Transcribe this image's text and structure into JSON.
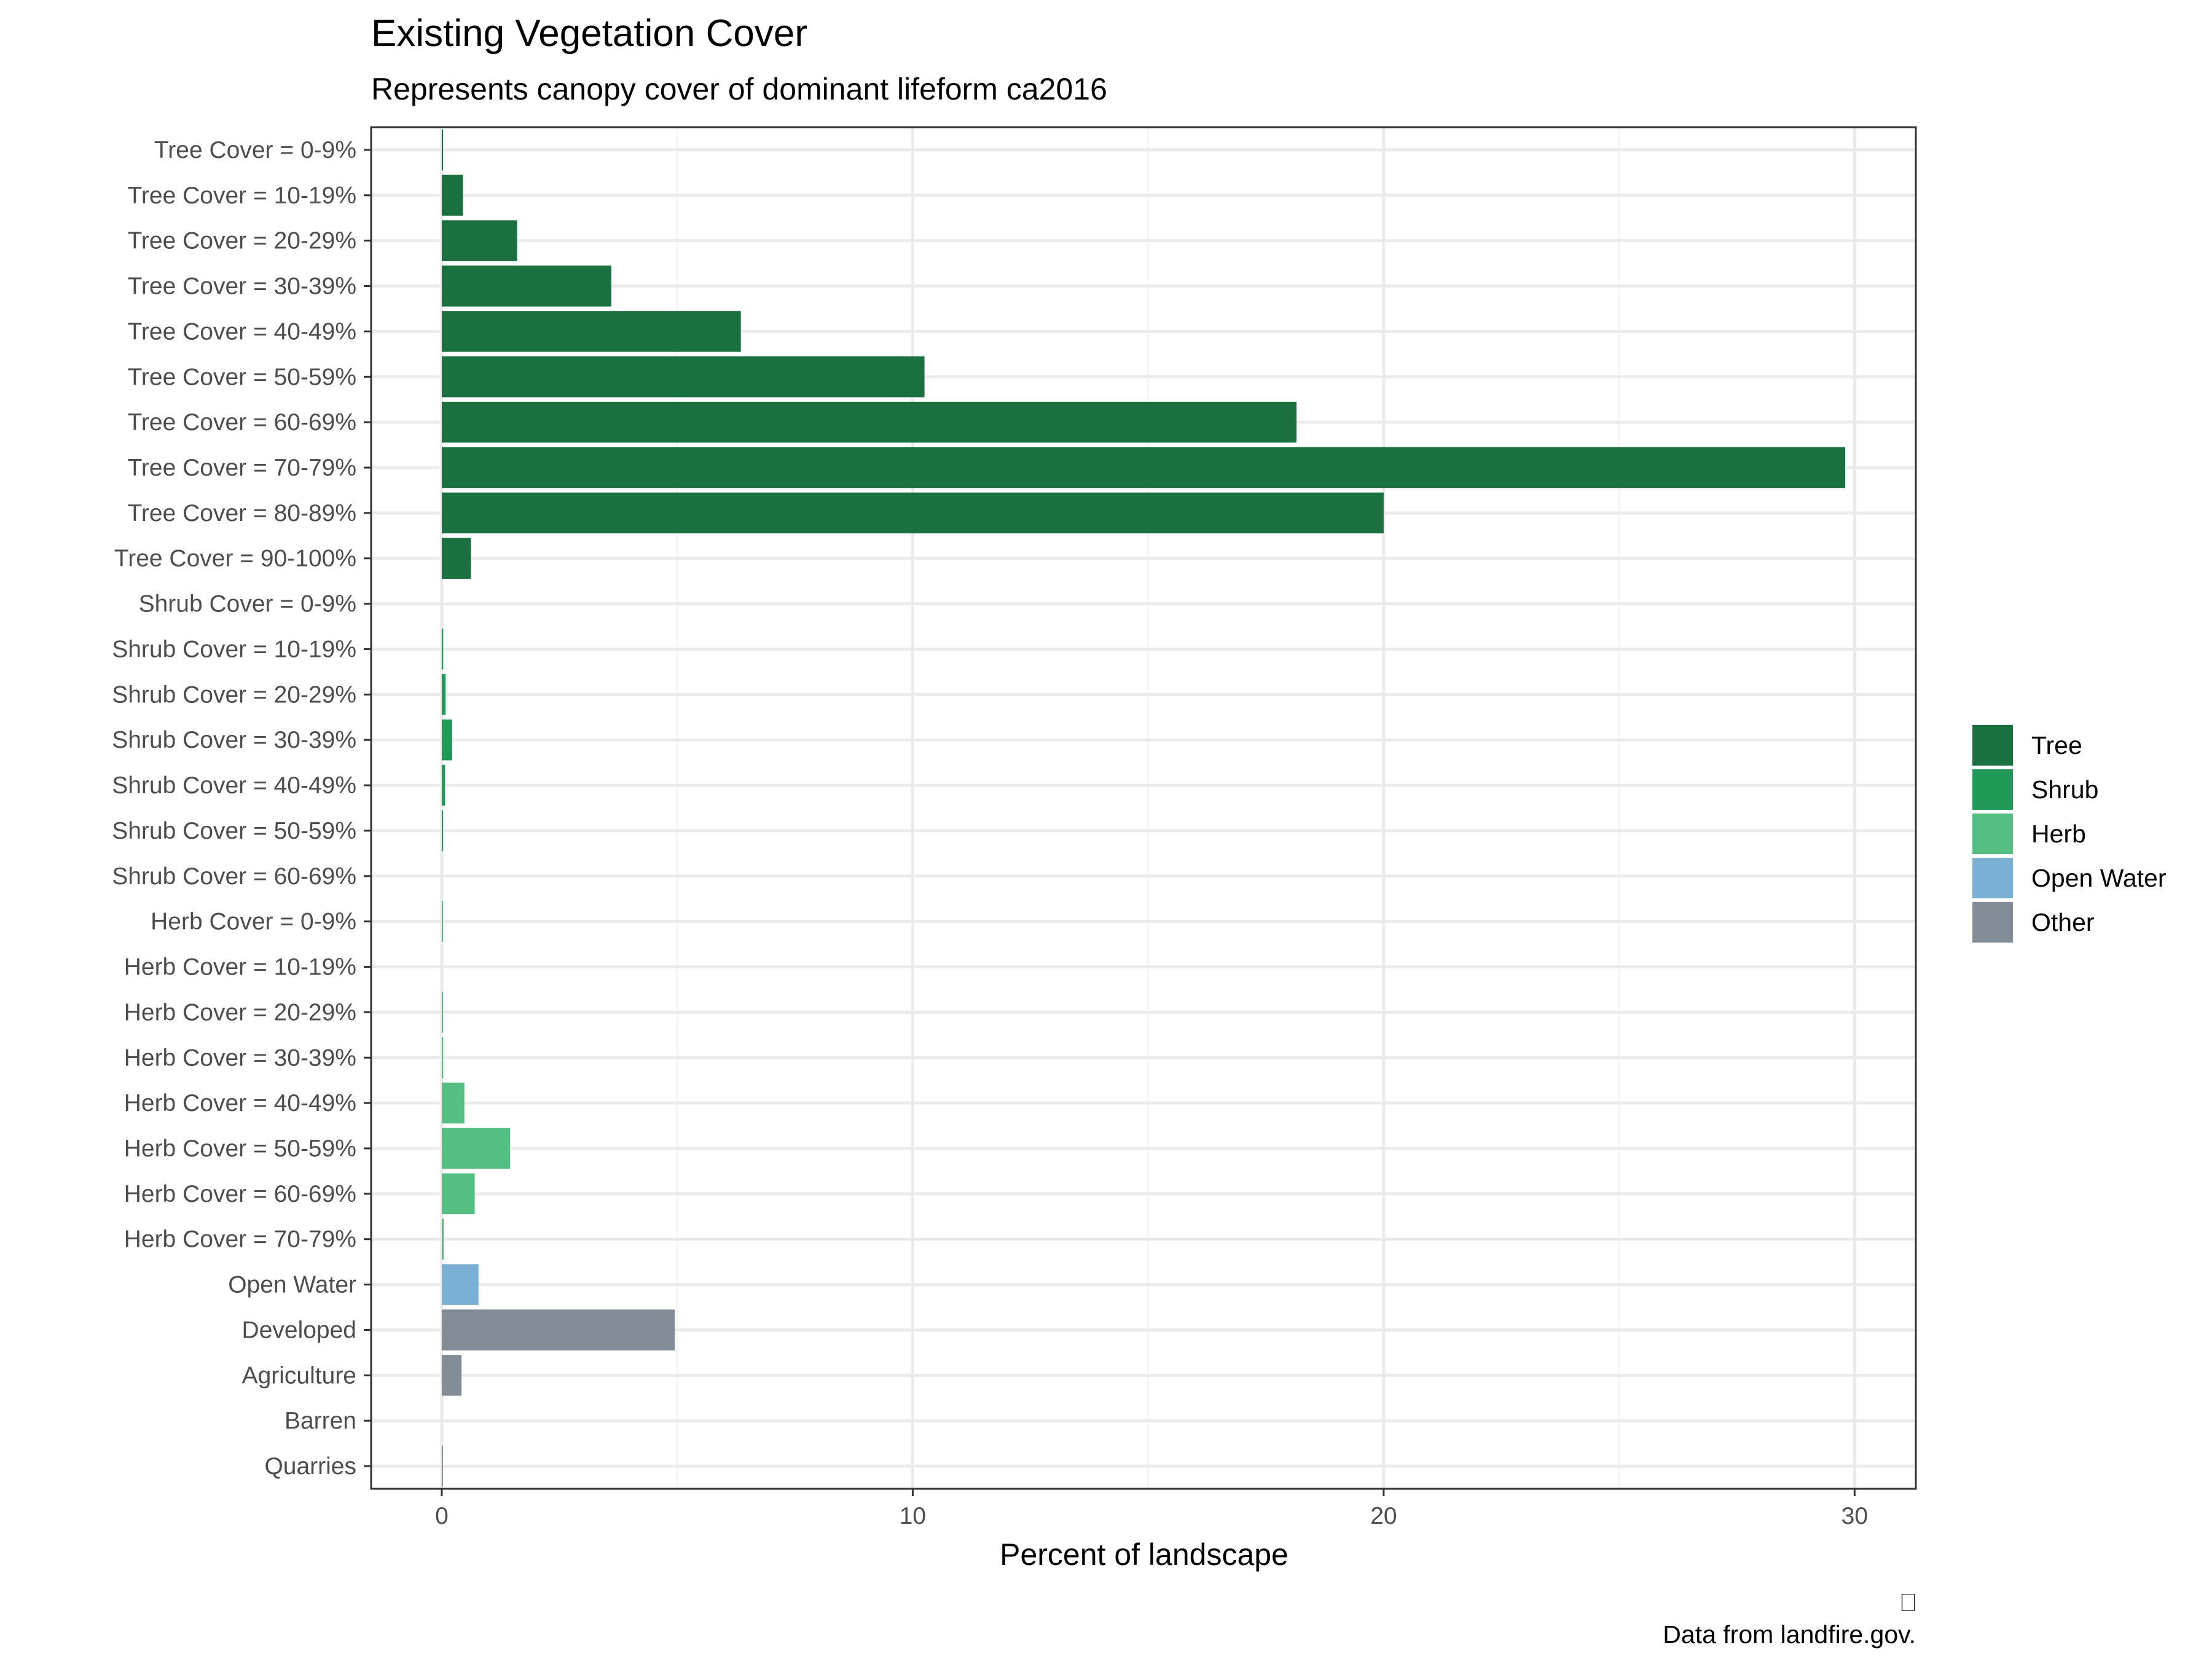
{
  "chart_data": {
    "type": "bar",
    "orientation": "horizontal",
    "title": "Existing Vegetation Cover",
    "subtitle": "Represents canopy cover of dominant lifeform ca2016",
    "xlabel": "Percent of landscape",
    "ylabel": "",
    "xlim": [
      -1.5,
      31.3
    ],
    "xticks": [
      0,
      10,
      20,
      30
    ],
    "grid": true,
    "legend_position": "right",
    "caption": "Data from landfire.gov.",
    "caption_glyph": "⎕",
    "categories": [
      "Tree Cover = 0-9%",
      "Tree Cover = 10-19%",
      "Tree Cover = 20-29%",
      "Tree Cover = 30-39%",
      "Tree Cover = 40-49%",
      "Tree Cover = 50-59%",
      "Tree Cover = 60-69%",
      "Tree Cover = 70-79%",
      "Tree Cover = 80-89%",
      "Tree Cover = 90-100%",
      "Shrub Cover = 0-9%",
      "Shrub Cover = 10-19%",
      "Shrub Cover = 20-29%",
      "Shrub Cover = 30-39%",
      "Shrub Cover = 40-49%",
      "Shrub Cover = 50-59%",
      "Shrub Cover = 60-69%",
      "Herb Cover = 0-9%",
      "Herb Cover = 10-19%",
      "Herb Cover = 20-29%",
      "Herb Cover = 30-39%",
      "Herb Cover = 40-49%",
      "Herb Cover = 50-59%",
      "Herb Cover = 60-69%",
      "Herb Cover = 70-79%",
      "Open Water",
      "Developed",
      "Agriculture",
      "Barren",
      "Quarries"
    ],
    "values": [
      0.02,
      0.45,
      1.6,
      3.6,
      6.35,
      10.25,
      18.15,
      29.8,
      20.0,
      0.62,
      0.0,
      0.03,
      0.08,
      0.22,
      0.07,
      0.02,
      0.0,
      0.01,
      0.0,
      0.01,
      0.03,
      0.48,
      1.45,
      0.7,
      0.04,
      0.78,
      4.95,
      0.42,
      0.0,
      0.02
    ],
    "groups": [
      "Tree",
      "Tree",
      "Tree",
      "Tree",
      "Tree",
      "Tree",
      "Tree",
      "Tree",
      "Tree",
      "Tree",
      "Shrub",
      "Shrub",
      "Shrub",
      "Shrub",
      "Shrub",
      "Shrub",
      "Shrub",
      "Herb",
      "Herb",
      "Herb",
      "Herb",
      "Herb",
      "Herb",
      "Herb",
      "Herb",
      "Open Water",
      "Other",
      "Other",
      "Other",
      "Other"
    ],
    "legend": [
      {
        "name": "Tree",
        "color": "#1b7040"
      },
      {
        "name": "Shrub",
        "color": "#219a58"
      },
      {
        "name": "Herb",
        "color": "#55bf83"
      },
      {
        "name": "Open Water",
        "color": "#7bb0d5"
      },
      {
        "name": "Other",
        "color": "#838d98"
      }
    ],
    "colors": {
      "panel_border": "#333333",
      "grid_major": "#ebebeb",
      "grid_minor": "#f5f5f5",
      "tick": "#333333"
    }
  }
}
